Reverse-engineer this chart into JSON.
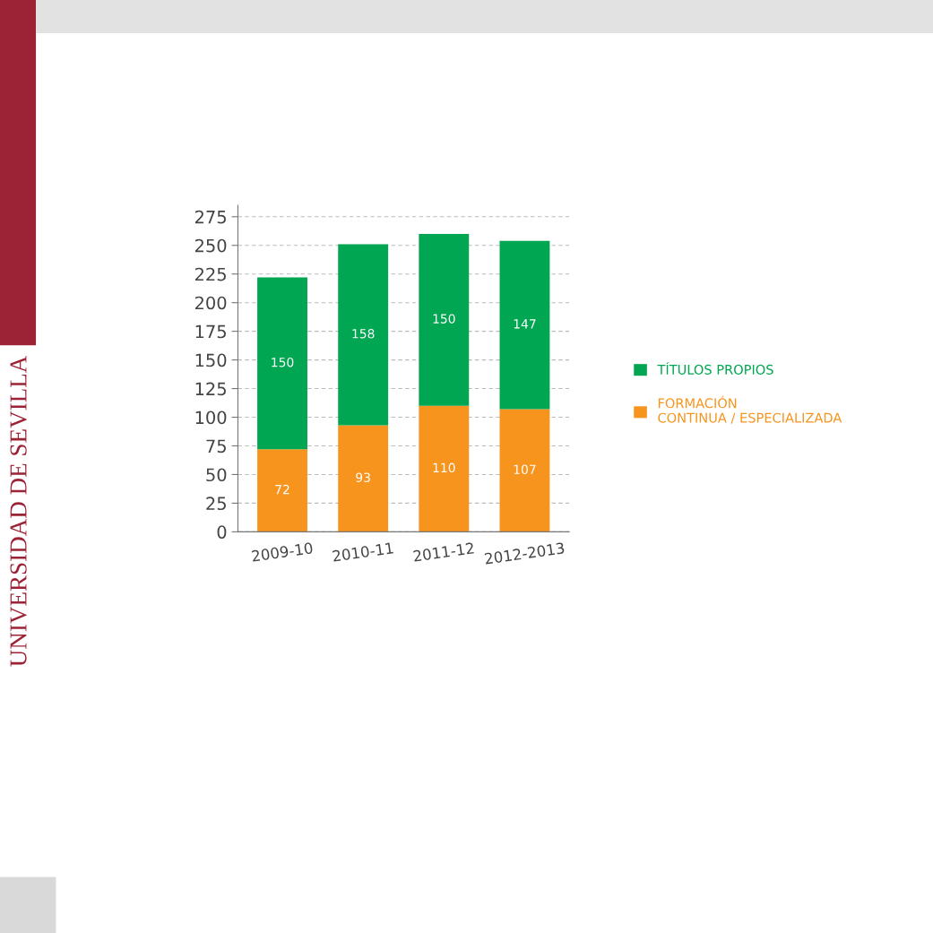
{
  "chart_data": {
    "type": "bar",
    "stacked": true,
    "categories": [
      "2009-10",
      "2010-11",
      "2011-12",
      "2012-2013"
    ],
    "series": [
      {
        "name": "FORMACIÓN\nCONTINUA / ESPECIALIZADA",
        "color": "#f7941d",
        "values": [
          72,
          93,
          110,
          107
        ]
      },
      {
        "name": "TÍTULOS PROPIOS",
        "color": "#00a651",
        "values": [
          150,
          158,
          150,
          147
        ]
      }
    ],
    "ylim": [
      0,
      285
    ],
    "yticks": [
      0,
      25,
      50,
      75,
      100,
      125,
      150,
      175,
      200,
      225,
      250,
      275
    ],
    "grid": "y",
    "legend": "right",
    "data_labels": true,
    "annotations": [
      "UNIVERSIDAD DE SEVILLA"
    ]
  }
}
